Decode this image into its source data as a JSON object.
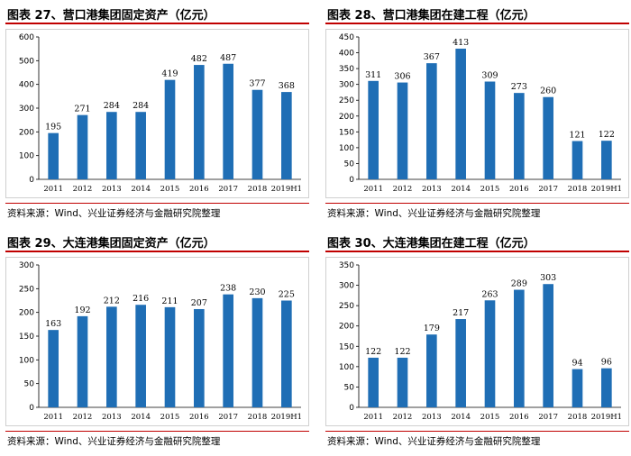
{
  "source_label": "资料来源：Wind、兴业证券经济与金融研究院整理",
  "chart_data": [
    {
      "type": "bar",
      "title": "图表 27、营口港集团固定资产（亿元）",
      "categories": [
        "2011",
        "2012",
        "2013",
        "2014",
        "2015",
        "2016",
        "2017",
        "2018",
        "2019H1"
      ],
      "values": [
        195,
        271,
        284,
        284,
        419,
        482,
        487,
        377,
        368
      ],
      "ylim": [
        0,
        600
      ],
      "yticks": [
        0,
        100,
        200,
        300,
        400,
        500,
        600
      ],
      "bar_color": "#1f6eb5",
      "grid": false
    },
    {
      "type": "bar",
      "title": "图表 28、营口港集团在建工程（亿元）",
      "categories": [
        "2011",
        "2012",
        "2013",
        "2014",
        "2015",
        "2016",
        "2017",
        "2018",
        "2019H1"
      ],
      "values": [
        311,
        306,
        367,
        413,
        309,
        273,
        260,
        121,
        122
      ],
      "ylim": [
        0,
        450
      ],
      "yticks": [
        0,
        50,
        100,
        150,
        200,
        250,
        300,
        350,
        400,
        450
      ],
      "bar_color": "#1f6eb5",
      "grid": false
    },
    {
      "type": "bar",
      "title": "图表 29、大连港集团固定资产（亿元）",
      "categories": [
        "2011",
        "2012",
        "2013",
        "2014",
        "2015",
        "2016",
        "2017",
        "2018",
        "2019H1"
      ],
      "values": [
        163,
        192,
        212,
        216,
        211,
        207,
        238,
        230,
        225
      ],
      "ylim": [
        0,
        300
      ],
      "yticks": [
        0,
        50,
        100,
        150,
        200,
        250,
        300
      ],
      "bar_color": "#1f6eb5",
      "grid": false
    },
    {
      "type": "bar",
      "title": "图表 30、大连港集团在建工程（亿元）",
      "categories": [
        "2011",
        "2012",
        "2013",
        "2014",
        "2015",
        "2016",
        "2017",
        "2018",
        "2019H1"
      ],
      "values": [
        122,
        122,
        179,
        217,
        263,
        289,
        303,
        94,
        96
      ],
      "ylim": [
        0,
        350
      ],
      "yticks": [
        0,
        50,
        100,
        150,
        200,
        250,
        300,
        350
      ],
      "bar_color": "#1f6eb5",
      "grid": false
    }
  ]
}
